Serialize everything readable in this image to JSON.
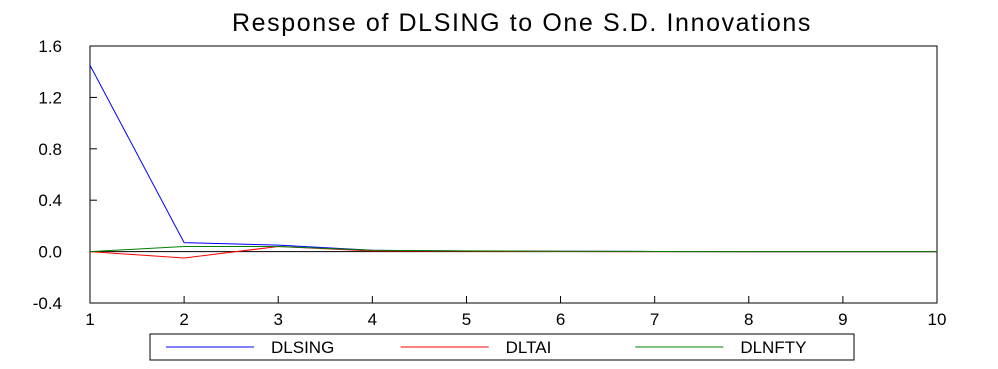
{
  "chart_data": {
    "type": "line",
    "title": "Response of DLSING to One S.D. Innovations",
    "xlabel": "",
    "ylabel": "",
    "x": [
      1,
      2,
      3,
      4,
      5,
      6,
      7,
      8,
      9,
      10
    ],
    "xlim": [
      1,
      10
    ],
    "ylim": [
      -0.4,
      1.6
    ],
    "x_ticks": [
      "1",
      "2",
      "3",
      "4",
      "5",
      "6",
      "7",
      "8",
      "9",
      "10"
    ],
    "y_ticks": [
      "1.6",
      "1.2",
      "0.8",
      "0.4",
      "0.0",
      "-0.4"
    ],
    "y_tick_values": [
      1.6,
      1.2,
      0.8,
      0.4,
      0.0,
      -0.4
    ],
    "zero_line": 0.0,
    "grid": false,
    "legend_position": "bottom-center",
    "series": [
      {
        "name": "DLSING",
        "color": "#0000ff",
        "values": [
          1.45,
          0.07,
          0.05,
          0.01,
          0.005,
          0.003,
          0.001,
          0.0,
          0.0,
          0.0
        ]
      },
      {
        "name": "DLTAI",
        "color": "#ff0000",
        "values": [
          0.0,
          -0.05,
          0.04,
          0.005,
          0.003,
          0.001,
          0.0,
          0.0,
          0.0,
          0.0
        ]
      },
      {
        "name": "DLNFTY",
        "color": "#008000",
        "values": [
          0.0,
          0.04,
          0.04,
          0.01,
          0.006,
          0.003,
          0.001,
          0.0,
          0.0,
          0.0
        ]
      }
    ]
  }
}
